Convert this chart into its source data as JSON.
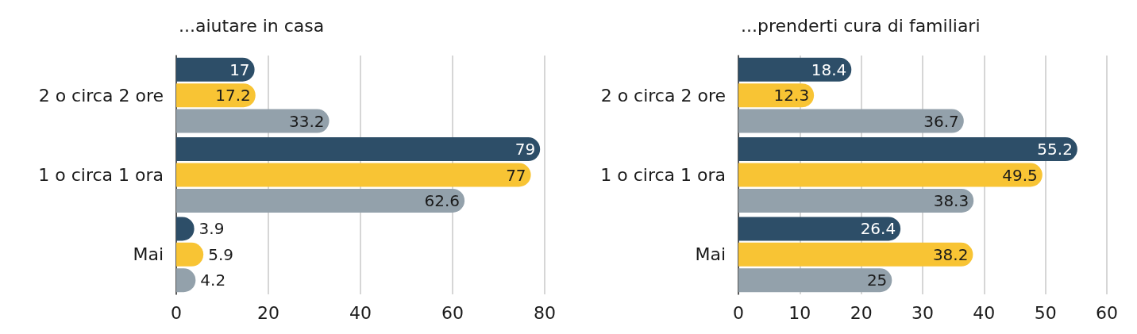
{
  "chart_data": [
    {
      "type": "bar",
      "orientation": "horizontal",
      "title": "...aiutare in casa",
      "categories": [
        "2 o circa 2 ore",
        "1 o circa 1 ora",
        "Mai"
      ],
      "series": [
        {
          "color": "#2d4e68",
          "values": [
            17,
            79,
            3.9
          ]
        },
        {
          "color": "#f8c434",
          "values": [
            17.2,
            77,
            5.9
          ]
        },
        {
          "color": "#93a1ab",
          "values": [
            33.2,
            62.6,
            4.2
          ]
        }
      ],
      "xlim": [
        0,
        80
      ],
      "xticks": [
        0,
        20,
        40,
        60,
        80
      ],
      "grid": "x",
      "data_labels": true
    },
    {
      "type": "bar",
      "orientation": "horizontal",
      "title": "...prenderti cura di familiari",
      "categories": [
        "2 o circa 2 ore",
        "1 o circa 1 ora",
        "Mai"
      ],
      "series": [
        {
          "color": "#2d4e68",
          "values": [
            18.4,
            55.2,
            26.4
          ]
        },
        {
          "color": "#f8c434",
          "values": [
            12.3,
            49.5,
            38.2
          ]
        },
        {
          "color": "#93a1ab",
          "values": [
            36.7,
            38.3,
            25
          ]
        }
      ],
      "xlim": [
        0,
        60
      ],
      "xticks": [
        0,
        10,
        20,
        30,
        40,
        50,
        60
      ],
      "grid": "x",
      "data_labels": true
    }
  ]
}
